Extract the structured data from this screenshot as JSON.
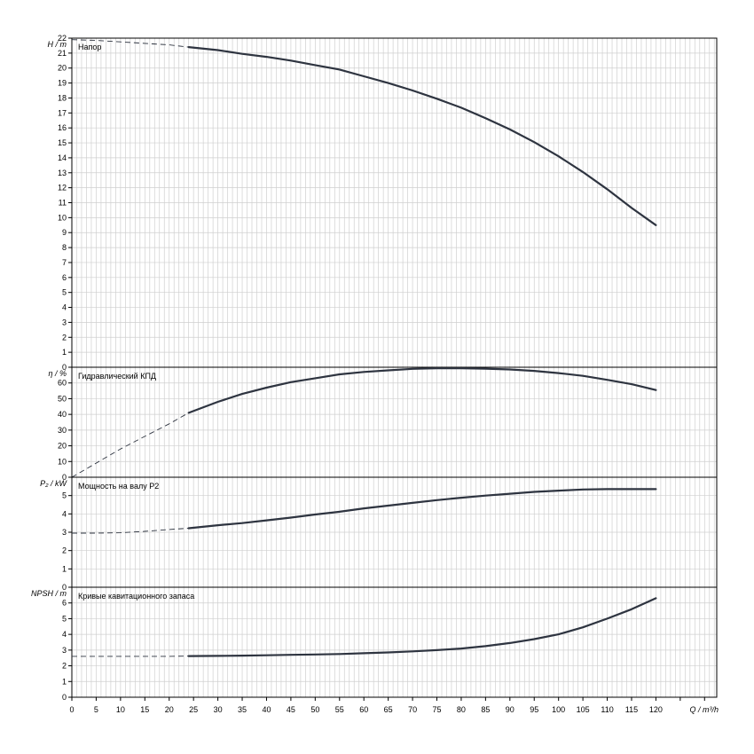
{
  "x_axis": {
    "label": "Q / m³/h",
    "min": 0,
    "max": 132.5,
    "tick_step": 5,
    "label_max": 120
  },
  "chart_data": [
    {
      "type": "line",
      "title": "Напор",
      "ylabel": "H / m",
      "ylim": [
        0,
        22
      ],
      "tick_step": 1,
      "label_max": 22,
      "grid": true,
      "series": [
        {
          "name": "",
          "dashed": {
            "x": [
              0,
              5,
              10,
              15,
              20,
              24
            ],
            "y": [
              21.9,
              21.85,
              21.75,
              21.65,
              21.55,
              21.4
            ]
          },
          "solid": {
            "x": [
              24,
              30,
              35,
              40,
              45,
              50,
              55,
              60,
              65,
              70,
              75,
              80,
              85,
              90,
              95,
              100,
              105,
              110,
              115,
              120
            ],
            "y": [
              21.4,
              21.2,
              20.95,
              20.75,
              20.5,
              20.2,
              19.9,
              19.45,
              19.0,
              18.5,
              17.95,
              17.35,
              16.65,
              15.9,
              15.05,
              14.1,
              13.05,
              11.9,
              10.65,
              9.5
            ]
          }
        }
      ]
    },
    {
      "type": "line",
      "title": "Гидравлический КПД",
      "ylabel": "η / %",
      "ylim": [
        0,
        70
      ],
      "tick_step": 10,
      "label_max": 60,
      "grid": true,
      "series": [
        {
          "name": "",
          "dashed": {
            "x": [
              0,
              5,
              10,
              15,
              20,
              24
            ],
            "y": [
              0,
              9,
              18,
              26,
              34,
              41
            ]
          },
          "solid": {
            "x": [
              24,
              30,
              35,
              40,
              45,
              50,
              55,
              60,
              65,
              70,
              75,
              80,
              85,
              90,
              95,
              100,
              105,
              110,
              115,
              120
            ],
            "y": [
              41,
              48,
              53,
              57,
              60.5,
              63,
              65.5,
              67,
              68,
              69,
              69.3,
              69.3,
              69.1,
              68.6,
              67.7,
              66.3,
              64.5,
              62,
              59.2,
              55.5
            ]
          }
        }
      ]
    },
    {
      "type": "line",
      "title": "Мощность на валу P2",
      "ylabel": "P₂ / kW",
      "ylim": [
        0,
        6
      ],
      "tick_step": 1,
      "label_max": 5,
      "grid": true,
      "series": [
        {
          "name": "",
          "dashed": {
            "x": [
              0,
              5,
              10,
              15,
              20,
              24
            ],
            "y": [
              2.95,
              2.95,
              2.97,
              3.05,
              3.15,
              3.22
            ]
          },
          "solid": {
            "x": [
              24,
              30,
              35,
              40,
              45,
              50,
              55,
              60,
              65,
              70,
              75,
              80,
              85,
              90,
              95,
              100,
              105,
              110,
              115,
              120
            ],
            "y": [
              3.22,
              3.38,
              3.5,
              3.65,
              3.8,
              3.97,
              4.12,
              4.3,
              4.45,
              4.6,
              4.75,
              4.88,
              5.0,
              5.1,
              5.2,
              5.27,
              5.33,
              5.35,
              5.35,
              5.35
            ]
          }
        }
      ]
    },
    {
      "type": "line",
      "title": "Кривые кавитационного запаса",
      "ylabel": "NPSH / m",
      "ylim": [
        0,
        7
      ],
      "tick_step": 1,
      "label_max": 6,
      "grid": true,
      "series": [
        {
          "name": "",
          "dashed": {
            "x": [
              0,
              5,
              10,
              15,
              20,
              24
            ],
            "y": [
              2.6,
              2.6,
              2.6,
              2.6,
              2.6,
              2.62
            ]
          },
          "solid": {
            "x": [
              24,
              30,
              35,
              40,
              45,
              50,
              55,
              60,
              65,
              70,
              75,
              80,
              85,
              90,
              95,
              100,
              105,
              110,
              115,
              120
            ],
            "y": [
              2.62,
              2.63,
              2.65,
              2.67,
              2.7,
              2.72,
              2.75,
              2.8,
              2.85,
              2.92,
              3.0,
              3.1,
              3.25,
              3.45,
              3.7,
              4.0,
              4.45,
              5.0,
              5.6,
              6.3
            ]
          }
        }
      ]
    }
  ]
}
